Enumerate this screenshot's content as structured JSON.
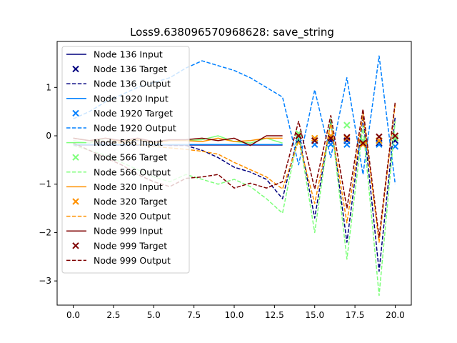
{
  "chart_data": {
    "type": "line",
    "title": "Loss9.638096570968628: save_string",
    "xlabel": "",
    "ylabel": "",
    "xlim": [
      -1.0,
      21.0
    ],
    "ylim": [
      -3.5,
      1.95
    ],
    "xticks": [
      0.0,
      2.5,
      5.0,
      7.5,
      10.0,
      12.5,
      15.0,
      17.5,
      20.0
    ],
    "xtick_labels": [
      "0.0",
      "2.5",
      "5.0",
      "7.5",
      "10.0",
      "12.5",
      "15.0",
      "17.5",
      "20.0"
    ],
    "yticks": [
      1,
      0,
      -1,
      -2,
      -3
    ],
    "ytick_labels": [
      "1",
      "0",
      "−1",
      "−2",
      "−3"
    ],
    "legend_position": "upper left",
    "grid": false,
    "series": [
      {
        "name": "Node 136 Input",
        "kind": "line",
        "color": "#00007f",
        "x": [
          0,
          1,
          2,
          3,
          4,
          5,
          6,
          7,
          8,
          9,
          10,
          11,
          12,
          13
        ],
        "y": [
          -0.19,
          -0.19,
          -0.19,
          -0.19,
          -0.19,
          -0.19,
          -0.19,
          -0.19,
          -0.19,
          -0.19,
          -0.19,
          -0.19,
          -0.19,
          -0.19
        ]
      },
      {
        "name": "Node 136 Target",
        "kind": "marker",
        "color": "#00007f",
        "x": [
          14,
          15,
          16,
          17,
          18,
          19,
          20
        ],
        "y": [
          -0.1,
          -0.1,
          -0.1,
          -0.1,
          -0.1,
          -0.15,
          -0.1
        ]
      },
      {
        "name": "Node 136 Output",
        "kind": "dashed",
        "color": "#00007f",
        "x": [
          0,
          1,
          2,
          3,
          4,
          5,
          6,
          7,
          8,
          9,
          10,
          11,
          12,
          13,
          14,
          15,
          16,
          17,
          18,
          19,
          20
        ],
        "y": [
          -0.05,
          -0.1,
          -0.15,
          -0.1,
          -0.1,
          -0.15,
          -0.2,
          -0.2,
          -0.3,
          -0.45,
          -0.65,
          -0.75,
          -0.9,
          -1.3,
          0.05,
          -1.7,
          0.3,
          -2.2,
          0.4,
          -2.8,
          0.4
        ]
      },
      {
        "name": "Node 1920 Input",
        "kind": "line",
        "color": "#0080ff",
        "x": [
          0,
          1,
          2,
          3,
          4,
          5,
          6,
          7,
          8,
          9,
          10,
          11,
          12,
          13
        ],
        "y": [
          -0.18,
          -0.18,
          -0.18,
          -0.18,
          -0.18,
          -0.18,
          -0.18,
          -0.18,
          -0.18,
          -0.18,
          -0.18,
          -0.18,
          -0.18,
          -0.18
        ]
      },
      {
        "name": "Node 1920 Target",
        "kind": "marker",
        "color": "#0080ff",
        "x": [
          14,
          15,
          16,
          17,
          18,
          19,
          20
        ],
        "y": [
          -0.05,
          -0.18,
          -0.18,
          -0.18,
          -0.15,
          -0.18,
          -0.22
        ]
      },
      {
        "name": "Node 1920 Output",
        "kind": "dashed",
        "color": "#0080ff",
        "x": [
          0,
          1,
          2,
          3,
          4,
          5,
          6,
          7,
          8,
          9,
          10,
          11,
          12,
          13,
          14,
          15,
          16,
          17,
          18,
          19,
          20
        ],
        "y": [
          0.35,
          0.5,
          0.7,
          0.85,
          1.0,
          1.1,
          1.2,
          1.4,
          1.55,
          1.45,
          1.35,
          1.2,
          1.0,
          0.8,
          -0.6,
          0.95,
          -0.45,
          1.2,
          -0.8,
          1.65,
          -1.0
        ]
      },
      {
        "name": "Node 566 Input",
        "kind": "line",
        "color": "#7dff7a",
        "x": [
          0,
          1,
          2,
          3,
          4,
          5,
          6,
          7,
          8,
          9,
          10,
          11,
          12,
          13
        ],
        "y": [
          -0.1,
          -0.15,
          -0.05,
          -0.12,
          -0.08,
          -0.15,
          -0.1,
          -0.1,
          -0.08,
          0.0,
          -0.12,
          -0.15,
          -0.05,
          -0.15
        ]
      },
      {
        "name": "Node 566 Target",
        "kind": "marker",
        "color": "#7dff7a",
        "x": [
          14,
          15,
          16,
          17,
          18,
          19,
          20
        ],
        "y": [
          0.05,
          -0.05,
          0.0,
          0.22,
          -0.1,
          -0.1,
          -0.05
        ]
      },
      {
        "name": "Node 566 Output",
        "kind": "dashed",
        "color": "#7dff7a",
        "x": [
          0,
          1,
          2,
          3,
          4,
          5,
          6,
          7,
          8,
          9,
          10,
          11,
          12,
          13,
          14,
          15,
          16,
          17,
          18,
          19,
          20
        ],
        "y": [
          -0.2,
          -0.3,
          -0.4,
          -0.55,
          -0.7,
          -0.85,
          -0.95,
          -0.8,
          -0.9,
          -1.0,
          -0.9,
          -1.05,
          -1.3,
          -1.6,
          0.05,
          -2.0,
          0.35,
          -2.55,
          0.2,
          -3.3,
          0.3
        ]
      },
      {
        "name": "Node 320 Input",
        "kind": "line",
        "color": "#ff9100",
        "x": [
          0,
          1,
          2,
          3,
          4,
          5,
          6,
          7,
          8,
          9,
          10,
          11,
          12,
          13
        ],
        "y": [
          -0.05,
          -0.1,
          -0.05,
          -0.12,
          -0.08,
          -0.15,
          -0.1,
          -0.1,
          -0.12,
          -0.05,
          -0.12,
          -0.1,
          -0.05,
          -0.05
        ]
      },
      {
        "name": "Node 320 Target",
        "kind": "marker",
        "color": "#ff9100",
        "x": [
          14,
          15,
          16,
          17,
          18,
          19,
          20
        ],
        "y": [
          0.0,
          -0.05,
          0.0,
          -0.05,
          -0.18,
          -0.1,
          0.0
        ]
      },
      {
        "name": "Node 320 Output",
        "kind": "dashed",
        "color": "#ff9100",
        "x": [
          0,
          1,
          2,
          3,
          4,
          5,
          6,
          7,
          8,
          9,
          10,
          11,
          12,
          13,
          14,
          15,
          16,
          17,
          18,
          19,
          20
        ],
        "y": [
          -0.05,
          -0.1,
          -0.12,
          -0.15,
          -0.18,
          -0.22,
          -0.25,
          -0.28,
          -0.32,
          -0.38,
          -0.55,
          -0.7,
          -0.85,
          -1.1,
          -0.1,
          -1.4,
          0.25,
          -1.8,
          0.45,
          -2.2,
          0.65
        ]
      },
      {
        "name": "Node 999 Input",
        "kind": "line",
        "color": "#7f0000",
        "x": [
          0,
          1,
          2,
          3,
          4,
          5,
          6,
          7,
          8,
          9,
          10,
          11,
          12,
          13
        ],
        "y": [
          -0.05,
          -0.1,
          -0.05,
          -0.1,
          -0.05,
          -0.12,
          -0.08,
          -0.08,
          -0.05,
          -0.1,
          -0.05,
          -0.2,
          0.0,
          0.0
        ]
      },
      {
        "name": "Node 999 Target",
        "kind": "marker",
        "color": "#7f0000",
        "x": [
          14,
          15,
          16,
          17,
          18,
          19,
          20
        ],
        "y": [
          0.0,
          -0.1,
          -0.05,
          -0.03,
          -0.15,
          -0.02,
          0.0
        ]
      },
      {
        "name": "Node 999 Output",
        "kind": "dashed",
        "color": "#7f0000",
        "x": [
          0,
          1,
          2,
          3,
          4,
          5,
          6,
          7,
          8,
          9,
          10,
          11,
          12,
          13,
          14,
          15,
          16,
          17,
          18,
          19,
          20
        ],
        "y": [
          -0.15,
          -0.3,
          -0.45,
          -0.6,
          -0.8,
          -0.95,
          -1.05,
          -0.88,
          -0.85,
          -0.8,
          -1.08,
          -0.98,
          -1.08,
          -0.95,
          0.3,
          -1.1,
          0.42,
          -1.5,
          0.55,
          -2.1,
          0.7
        ]
      }
    ]
  }
}
